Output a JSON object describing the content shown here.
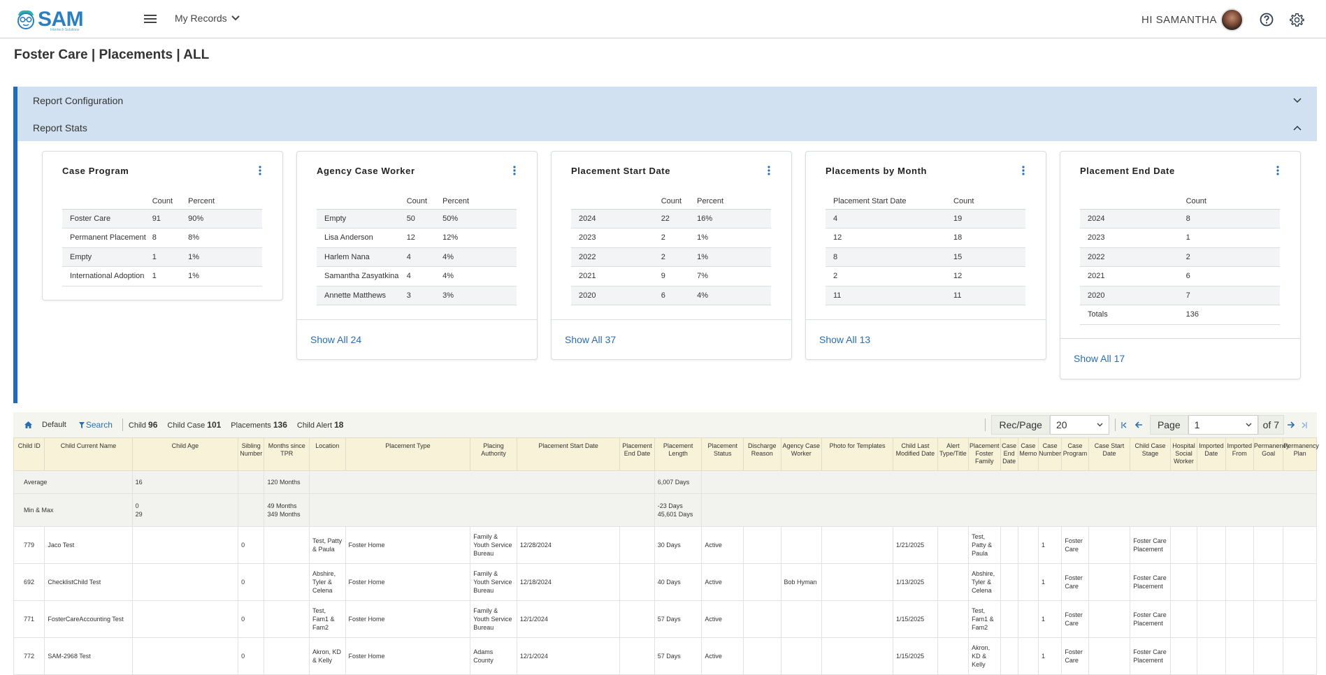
{
  "header": {
    "logo_text": "SAM",
    "logo_subtext": "Intertech Solutions",
    "nav_label": "My Records",
    "greeting": "HI SAMANTHA"
  },
  "page": {
    "title": "Foster Care | Placements | ALL"
  },
  "accordion": {
    "config_label": "Report Configuration",
    "stats_label": "Report Stats"
  },
  "cards": [
    {
      "title": "Case Program",
      "columns": [
        "",
        "Count",
        "Percent"
      ],
      "rows": [
        [
          "Foster Care",
          "91",
          "90%"
        ],
        [
          "Permanent Placement",
          "8",
          "8%"
        ],
        [
          "Empty",
          "1",
          "1%"
        ],
        [
          "International Adoption",
          "1",
          "1%"
        ]
      ],
      "show_all": ""
    },
    {
      "title": "Agency Case Worker",
      "columns": [
        "",
        "Count",
        "Percent"
      ],
      "rows": [
        [
          "Empty",
          "50",
          "50%"
        ],
        [
          "Lisa Anderson",
          "12",
          "12%"
        ],
        [
          "Harlem Nana",
          "4",
          "4%"
        ],
        [
          "Samantha Zasyatkina",
          "4",
          "4%"
        ],
        [
          "Annette Matthews",
          "3",
          "3%"
        ]
      ],
      "show_all": "Show All 24"
    },
    {
      "title": "Placement Start Date",
      "columns": [
        "",
        "Count",
        "Percent"
      ],
      "rows": [
        [
          "2024",
          "22",
          "16%"
        ],
        [
          "2023",
          "2",
          "1%"
        ],
        [
          "2022",
          "2",
          "1%"
        ],
        [
          "2021",
          "9",
          "7%"
        ],
        [
          "2020",
          "6",
          "4%"
        ]
      ],
      "show_all": "Show All 37"
    },
    {
      "title": "Placements by Month",
      "columns": [
        "Placement Start Date",
        "Count"
      ],
      "rows": [
        [
          "4",
          "19"
        ],
        [
          "12",
          "18"
        ],
        [
          "8",
          "15"
        ],
        [
          "2",
          "12"
        ],
        [
          "11",
          "11"
        ]
      ],
      "show_all": "Show All 13"
    },
    {
      "title": "Placement End Date",
      "columns": [
        "",
        "Count"
      ],
      "rows": [
        [
          "2024",
          "8"
        ],
        [
          "2023",
          "1"
        ],
        [
          "2022",
          "2"
        ],
        [
          "2021",
          "6"
        ],
        [
          "2020",
          "7"
        ],
        [
          "Totals",
          "136"
        ]
      ],
      "show_all": "Show All 17"
    }
  ],
  "toolbar": {
    "default_label": "Default",
    "search_label": "Search",
    "counts": [
      {
        "label": "Child",
        "value": "96"
      },
      {
        "label": "Child Case",
        "value": "101"
      },
      {
        "label": "Placements",
        "value": "136"
      },
      {
        "label": "Child Alert",
        "value": "18"
      }
    ],
    "rec_page_label": "Rec/Page",
    "rec_page_value": "20",
    "page_label": "Page",
    "page_value": "1",
    "page_of": "of 7"
  },
  "grid": {
    "columns": [
      "Child ID",
      "Child Current Name",
      "Child Age",
      "Sibling Number",
      "Months since TPR",
      "Location",
      "Placement Type",
      "Placing Authority",
      "Placement Start Date",
      "Placement End Date",
      "Placement Length",
      "Placement Status",
      "Discharge Reason",
      "Agency Case Worker",
      "Photo for Templates",
      "Child Last Modified Date",
      "Alert Type/Title",
      "Placement Foster Family",
      "Case End Date",
      "Case Memo",
      "Case Number",
      "Case Program",
      "Case Start Date",
      "Child Case Stage",
      "Hospital Social Worker",
      "Imported Date",
      "Imported From",
      "Permanency Goal",
      "Permanency Plan"
    ],
    "average": {
      "label": "Average",
      "age": "16",
      "tpr": "120 Months",
      "length": "6,007 Days"
    },
    "minmax": {
      "label": "Min & Max",
      "age_min": "0",
      "age_max": "29",
      "tpr_min": "49 Months",
      "tpr_max": "349 Months",
      "length_min": "-23 Days",
      "length_max": "45,601 Days"
    },
    "rows": [
      [
        "779",
        "Jaco Test",
        "",
        "0",
        "",
        "Test, Patty & Paula",
        "Foster Home",
        "Family & Youth Service Bureau",
        "12/28/2024",
        "",
        "30 Days",
        "Active",
        "",
        "",
        "",
        "1/21/2025",
        "",
        "Test, Patty & Paula",
        "",
        "",
        "1",
        "Foster Care",
        "",
        "Foster Care Placement",
        "",
        "",
        "",
        "",
        ""
      ],
      [
        "692",
        "ChecklistChild Test",
        "",
        "0",
        "",
        "Abshire, Tyler & Celena",
        "Foster Home",
        "Family & Youth Service Bureau",
        "12/18/2024",
        "",
        "40 Days",
        "Active",
        "",
        "Bob Hyman",
        "",
        "1/13/2025",
        "",
        "Abshire, Tyler & Celena",
        "",
        "",
        "1",
        "Foster Care",
        "",
        "Foster Care Placement",
        "",
        "",
        "",
        "",
        ""
      ],
      [
        "771",
        "FosterCareAccounting Test",
        "",
        "0",
        "",
        "Test, Fam1 & Fam2",
        "Foster Home",
        "Family & Youth Service Bureau",
        "12/1/2024",
        "",
        "57 Days",
        "Active",
        "",
        "",
        "",
        "1/15/2025",
        "",
        "Test, Fam1 & Fam2",
        "",
        "",
        "1",
        "Foster Care",
        "",
        "Foster Care Placement",
        "",
        "",
        "",
        "",
        ""
      ],
      [
        "772",
        "SAM-2968 Test",
        "",
        "0",
        "",
        "Akron, KD & Kelly",
        "Foster Home",
        "Adams County",
        "12/1/2024",
        "",
        "57 Days",
        "Active",
        "",
        "",
        "",
        "1/15/2025",
        "",
        "Akron, KD & Kelly",
        "",
        "",
        "1",
        "Foster Care",
        "",
        "Foster Care Placement",
        "",
        "",
        "",
        "",
        ""
      ]
    ]
  },
  "colors": {
    "accent": "#1f6cb8",
    "accordion": "#d2e1f1",
    "link": "#2a6db4",
    "header_cell": "#f8f2d8"
  }
}
